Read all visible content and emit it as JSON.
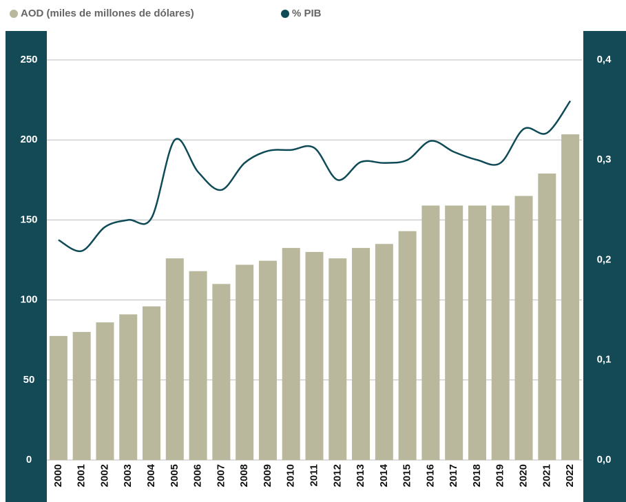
{
  "chart_data": {
    "type": "bar_line",
    "categories": [
      "2000",
      "2001",
      "2002",
      "2003",
      "2004",
      "2005",
      "2006",
      "2007",
      "2008",
      "2009",
      "2010",
      "2011",
      "2012",
      "2013",
      "2014",
      "2015",
      "2016",
      "2017",
      "2018",
      "2019",
      "2020",
      "2021",
      "2022"
    ],
    "series": [
      {
        "name": "AOD (miles de millones de dólares)",
        "color": "#b9b89d",
        "type": "bar",
        "values": [
          77.5,
          80,
          86,
          91,
          96,
          126,
          118,
          110,
          122,
          124.5,
          132.5,
          130,
          126,
          132.5,
          135,
          143,
          159,
          159,
          159,
          159,
          165,
          179,
          203.5
        ]
      },
      {
        "name": "% PIB",
        "color": "#0f4a57",
        "type": "line",
        "axis": "y2",
        "values": [
          0.22,
          0.209,
          0.233,
          0.24,
          0.242,
          0.32,
          0.288,
          0.27,
          0.297,
          0.309,
          0.31,
          0.312,
          0.28,
          0.298,
          0.297,
          0.3,
          0.319,
          0.308,
          0.3,
          0.297,
          0.331,
          0.327,
          0.359
        ]
      }
    ],
    "ylim": [
      0,
      250
    ],
    "yticks": [
      0,
      50,
      100,
      150,
      200,
      250
    ],
    "y2lim": [
      0,
      0.4
    ],
    "y2ticks": [
      {
        "value": 0,
        "label": "0,0"
      },
      {
        "value": 0.1,
        "label": "0,1"
      },
      {
        "value": 0.2,
        "label": "0,2"
      },
      {
        "value": 0.3,
        "label": "0,3"
      },
      {
        "value": 0.4,
        "label": "0,4"
      }
    ],
    "grid": true,
    "legend": "top-left",
    "panel_color": "#134a56"
  }
}
